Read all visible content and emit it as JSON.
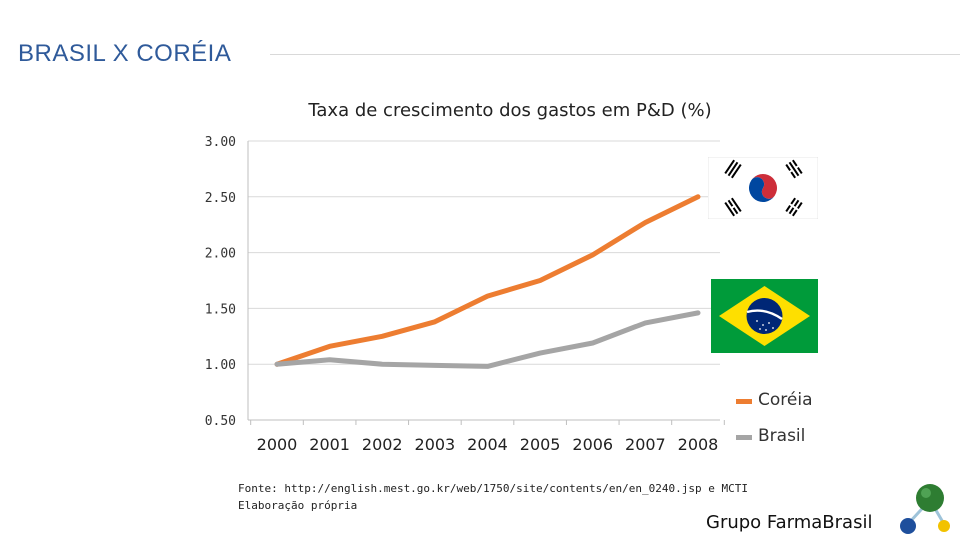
{
  "slide": {
    "title": "BRASIL X CORÉIA",
    "source_line1": "Fonte: http://english.mest.go.kr/web/1750/site/contents/en/en_0240.jsp e MCTI",
    "source_line2": "Elaboração própria",
    "brand": "Grupo FarmaBrasil"
  },
  "chart_data": {
    "type": "line",
    "title": "Taxa de crescimento dos gastos em P&D (%)",
    "xlabel": "",
    "ylabel": "",
    "categories": [
      "2000",
      "2001",
      "2002",
      "2003",
      "2004",
      "2005",
      "2006",
      "2007",
      "2008"
    ],
    "ylim": [
      0.5,
      3.0
    ],
    "yticks": [
      "0.50",
      "1.00",
      "1.50",
      "2.00",
      "2.50",
      "3.00"
    ],
    "grid": true,
    "legend_position": "right",
    "series": [
      {
        "name": "Coréia",
        "color": "#ed7d31",
        "values": [
          1.0,
          1.16,
          1.25,
          1.38,
          1.61,
          1.75,
          1.98,
          2.27,
          2.5
        ]
      },
      {
        "name": "Brasil",
        "color": "#a5a5a5",
        "values": [
          1.0,
          1.04,
          1.0,
          0.99,
          0.98,
          1.1,
          1.19,
          1.37,
          1.46
        ]
      }
    ]
  },
  "colors": {
    "korea_red": "#cd2e3a",
    "korea_blue": "#0047a0",
    "brazil_green": "#009b3a",
    "brazil_yellow": "#fedf00",
    "brazil_blue": "#002776"
  },
  "icons": {
    "korea_flag": "south-korea-flag-icon",
    "brazil_flag": "brazil-flag-icon",
    "brand_logo": "molecule-logo-icon"
  }
}
